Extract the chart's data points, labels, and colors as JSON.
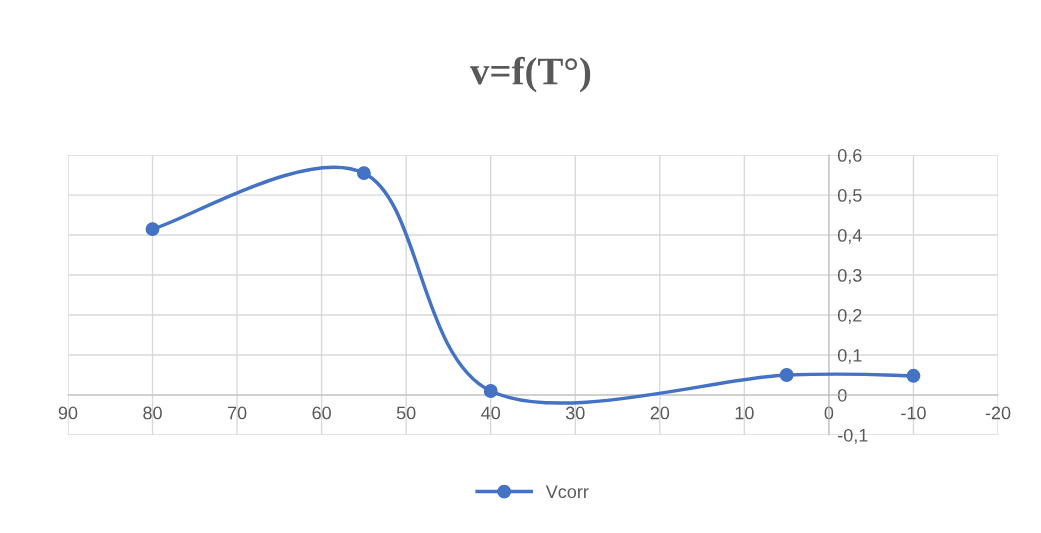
{
  "chart_data": {
    "type": "line",
    "title": "v=f(T°)",
    "x": [
      80,
      55,
      40,
      5,
      -10
    ],
    "series": [
      {
        "name": "Vcorr",
        "color": "#4472c4",
        "values": [
          0.415,
          0.555,
          0.01,
          0.05,
          0.048
        ]
      }
    ],
    "xlim": [
      90,
      -20
    ],
    "xticks": [
      90,
      80,
      70,
      60,
      50,
      40,
      30,
      20,
      10,
      0,
      -10,
      -20
    ],
    "ylim": [
      -0.1,
      0.6
    ],
    "yticks": [
      {
        "value": -0.1,
        "label": "-0,1"
      },
      {
        "value": 0,
        "label": "0"
      },
      {
        "value": 0.1,
        "label": "0,1"
      },
      {
        "value": 0.2,
        "label": "0,2"
      },
      {
        "value": 0.3,
        "label": "0,3"
      },
      {
        "value": 0.4,
        "label": "0,4"
      },
      {
        "value": 0.5,
        "label": "0,5"
      },
      {
        "value": 0.6,
        "label": "0,6"
      }
    ],
    "grid": true,
    "legend": "bottom",
    "marker": "circle",
    "line_style": "solid"
  }
}
